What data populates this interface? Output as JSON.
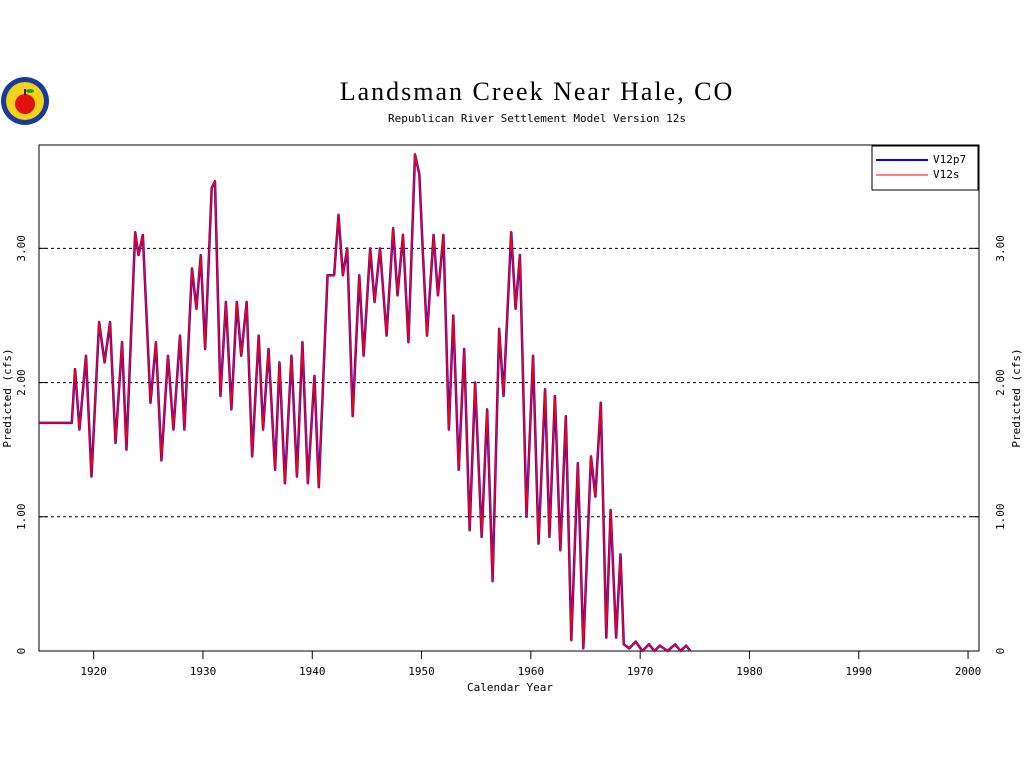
{
  "chart_data": {
    "type": "line",
    "title": "Landsman Creek Near Hale, CO",
    "subtitle": "Republican River Settlement Model Version 12s",
    "x_label": "Calendar Year",
    "y_label": "Predicted (cfs)",
    "x": [
      1915,
      1918,
      1918.3,
      1918.7,
      1919.3,
      1919.8,
      1920.5,
      1921,
      1921.5,
      1922,
      1922.6,
      1923,
      1923.8,
      1924.1,
      1924.5,
      1925.2,
      1925.7,
      1926.2,
      1926.8,
      1927.3,
      1927.9,
      1928.3,
      1929,
      1929.4,
      1929.8,
      1930.2,
      1930.8,
      1931.1,
      1931.6,
      1932.1,
      1932.6,
      1933.1,
      1933.5,
      1934,
      1934.5,
      1935.1,
      1935.5,
      1936,
      1936.6,
      1937,
      1937.5,
      1938.1,
      1938.6,
      1939.1,
      1939.6,
      1940.2,
      1940.6,
      1941.4,
      1942,
      1942.4,
      1942.8,
      1943.2,
      1943.7,
      1944.3,
      1944.7,
      1945.3,
      1945.7,
      1946.2,
      1946.8,
      1947.4,
      1947.8,
      1948.3,
      1948.8,
      1949.4,
      1949.8,
      1950.1,
      1950.5,
      1951.1,
      1951.5,
      1952,
      1952.5,
      1952.9,
      1953.4,
      1953.9,
      1954.4,
      1954.9,
      1955.5,
      1956,
      1956.5,
      1957.1,
      1957.5,
      1958.2,
      1958.6,
      1959,
      1959.6,
      1960.2,
      1960.7,
      1961.3,
      1961.7,
      1962.2,
      1962.7,
      1963.2,
      1963.7,
      1964.3,
      1964.8,
      1965.5,
      1965.9,
      1966.4,
      1966.9,
      1967.3,
      1967.8,
      1968.2,
      1968.5,
      1969,
      1969.6,
      1970.2,
      1970.8,
      1971.3,
      1971.8,
      1972.5,
      1973.2,
      1973.7,
      1974.2,
      1974.6
    ],
    "series": [
      {
        "name": "V12p7",
        "color": "#0000ff",
        "values": [
          1.7,
          1.7,
          2.1,
          1.65,
          2.2,
          1.3,
          2.45,
          2.15,
          2.45,
          1.55,
          2.3,
          1.5,
          3.12,
          2.95,
          3.1,
          1.85,
          2.3,
          1.42,
          2.2,
          1.65,
          2.35,
          1.65,
          2.85,
          2.55,
          2.95,
          2.25,
          3.45,
          3.5,
          1.9,
          2.6,
          1.8,
          2.6,
          2.2,
          2.6,
          1.45,
          2.35,
          1.65,
          2.25,
          1.35,
          2.15,
          1.25,
          2.2,
          1.3,
          2.3,
          1.25,
          2.05,
          1.22,
          2.8,
          2.8,
          3.25,
          2.8,
          3.0,
          1.75,
          2.8,
          2.2,
          3.0,
          2.6,
          3.0,
          2.35,
          3.15,
          2.65,
          3.1,
          2.3,
          3.7,
          3.55,
          3.0,
          2.35,
          3.1,
          2.65,
          3.1,
          1.65,
          2.5,
          1.35,
          2.25,
          0.9,
          2.0,
          0.85,
          1.8,
          0.52,
          2.4,
          1.9,
          3.12,
          2.55,
          2.95,
          1.0,
          2.2,
          0.8,
          1.95,
          0.85,
          1.9,
          0.75,
          1.75,
          0.08,
          1.4,
          0.02,
          1.45,
          1.15,
          1.85,
          0.1,
          1.05,
          0.1,
          0.72,
          0.05,
          0.02,
          0.07,
          0,
          0.05,
          0,
          0.04,
          0,
          0.05,
          0,
          0.04,
          0
        ]
      },
      {
        "name": "V12s",
        "color": "#ff0000",
        "values": [
          1.7,
          1.7,
          2.1,
          1.65,
          2.2,
          1.3,
          2.45,
          2.15,
          2.45,
          1.55,
          2.3,
          1.5,
          3.12,
          2.95,
          3.1,
          1.85,
          2.3,
          1.42,
          2.2,
          1.65,
          2.35,
          1.65,
          2.85,
          2.55,
          2.95,
          2.25,
          3.45,
          3.5,
          1.9,
          2.6,
          1.8,
          2.6,
          2.2,
          2.6,
          1.45,
          2.35,
          1.65,
          2.25,
          1.35,
          2.15,
          1.25,
          2.2,
          1.3,
          2.3,
          1.25,
          2.05,
          1.22,
          2.8,
          2.8,
          3.25,
          2.8,
          3.0,
          1.75,
          2.8,
          2.2,
          3.0,
          2.6,
          3.0,
          2.35,
          3.15,
          2.65,
          3.1,
          2.3,
          3.7,
          3.55,
          3.0,
          2.35,
          3.1,
          2.65,
          3.1,
          1.65,
          2.5,
          1.35,
          2.25,
          0.9,
          2.0,
          0.85,
          1.8,
          0.52,
          2.4,
          1.9,
          3.12,
          2.55,
          2.95,
          1.0,
          2.2,
          0.8,
          1.95,
          0.85,
          1.9,
          0.75,
          1.75,
          0.08,
          1.4,
          0.02,
          1.45,
          1.15,
          1.85,
          0.1,
          1.05,
          0.1,
          0.72,
          0.05,
          0.02,
          0.07,
          0,
          0.05,
          0,
          0.04,
          0,
          0.05,
          0,
          0.04,
          0
        ]
      }
    ],
    "xlim": [
      1915,
      2001
    ],
    "ylim": [
      0,
      3.77
    ],
    "xticks": [
      1920,
      1930,
      1940,
      1950,
      1960,
      1970,
      1980,
      1990,
      2000
    ],
    "yticks": [
      0,
      {
        "value": 1,
        "label": "1.00"
      },
      {
        "value": 2,
        "label": "2.00"
      },
      {
        "value": 3,
        "label": "3.00"
      }
    ],
    "grid": true,
    "legend": "upper right"
  }
}
